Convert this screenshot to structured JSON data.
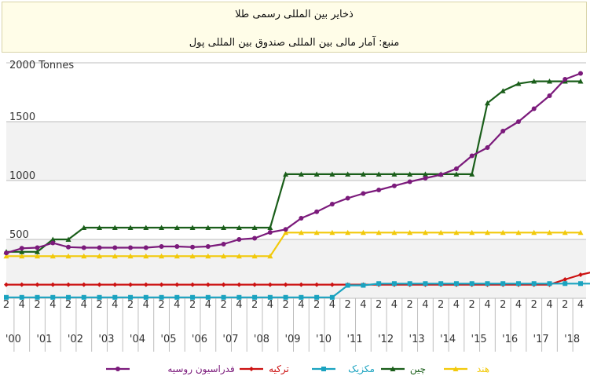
{
  "title": {
    "line1": "ذخایر بین المللی رسمی طلا",
    "line2": "منبع: آمار مالی بین المللی صندوق بین المللی پول"
  },
  "chart_data": {
    "type": "line",
    "ylabel": "2000 Tonnes",
    "ylim": [
      0,
      2000
    ],
    "yticks": [
      "500",
      "1000",
      "1500"
    ],
    "x_year_labels": [
      "'00",
      "'01",
      "'02",
      "'03",
      "'04",
      "'05",
      "'06",
      "'07",
      "'08",
      "'09",
      "'10",
      "'11",
      "'12",
      "'13",
      "'14",
      "'15",
      "'16",
      "'17",
      "'18"
    ],
    "x_quarter_labels": [
      "2",
      "4"
    ],
    "grid": true,
    "legend_position": "bottom",
    "series": [
      {
        "name": "فدراسیون روسیه",
        "color": "#7b1a7b",
        "marker": "circle",
        "values": [
          385,
          425,
          430,
          470,
          435,
          430,
          430,
          430,
          430,
          430,
          440,
          440,
          435,
          440,
          460,
          500,
          510,
          560,
          585,
          680,
          735,
          800,
          850,
          890,
          920,
          955,
          990,
          1020,
          1050,
          1100,
          1210,
          1280,
          1420,
          1500,
          1610,
          1720,
          1860,
          1910
        ]
      },
      {
        "name": "ترکیه",
        "color": "#cc1111",
        "marker": "diamond",
        "values": [
          116,
          116,
          116,
          116,
          116,
          116,
          116,
          116,
          116,
          116,
          116,
          116,
          116,
          116,
          116,
          116,
          116,
          116,
          116,
          116,
          116,
          116,
          116,
          116,
          116,
          116,
          116,
          116,
          116,
          116,
          116,
          116,
          116,
          116,
          116,
          116,
          160,
          200,
          230
        ]
      },
      {
        "name": "مکزیک",
        "color": "#1aa3c0",
        "marker": "square",
        "values": [
          8,
          8,
          8,
          8,
          8,
          8,
          8,
          8,
          8,
          8,
          8,
          8,
          8,
          8,
          8,
          8,
          8,
          8,
          8,
          8,
          8,
          8,
          110,
          110,
          125,
          125,
          125,
          125,
          125,
          125,
          125,
          125,
          125,
          125,
          125,
          125,
          125,
          125,
          125
        ]
      },
      {
        "name": "چین",
        "color": "#1a5e1a",
        "marker": "triangle",
        "values": [
          395,
          395,
          395,
          500,
          500,
          600,
          600,
          600,
          600,
          600,
          600,
          600,
          600,
          600,
          600,
          600,
          600,
          600,
          1054,
          1054,
          1054,
          1054,
          1054,
          1054,
          1054,
          1054,
          1054,
          1054,
          1054,
          1054,
          1054,
          1658,
          1762,
          1823,
          1843,
          1843,
          1843,
          1843
        ]
      },
      {
        "name": "هند",
        "color": "#f2c90a",
        "marker": "triangle",
        "values": [
          358,
          358,
          358,
          358,
          358,
          358,
          358,
          358,
          358,
          358,
          358,
          358,
          358,
          358,
          358,
          358,
          358,
          358,
          558,
          558,
          558,
          558,
          558,
          558,
          558,
          558,
          558,
          558,
          558,
          558,
          558,
          558,
          558,
          558,
          558,
          558,
          558,
          558
        ]
      }
    ]
  }
}
